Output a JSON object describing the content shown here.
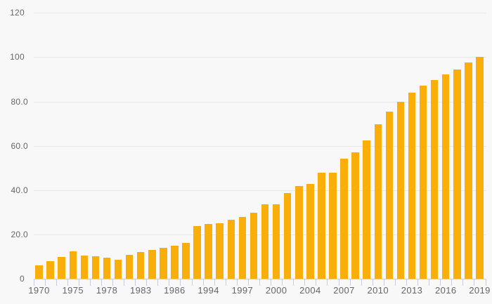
{
  "chart": {
    "title": "",
    "colors": {
      "background": "#f8f8f8",
      "bar": "#FAAE0A",
      "gridline": "#e8e8e8",
      "axis_and_ticks": "#c6cde4",
      "label_text": "#666666"
    }
  },
  "chart_data": {
    "type": "bar",
    "title": "",
    "xlabel": "",
    "ylabel": "",
    "ylim": [
      0,
      120
    ],
    "grid": "horizontal",
    "legend_position": "none",
    "x_tick_marks": "between-bars",
    "categories": [
      "1970",
      "",
      "",
      "1975",
      "",
      "",
      "1978",
      "",
      "",
      "1983",
      "",
      "",
      "1986",
      "",
      "",
      "1994",
      "",
      "",
      "1997",
      "",
      "",
      "2000",
      "",
      "",
      "2004",
      "",
      "",
      "2007",
      "",
      "",
      "2010",
      "",
      "",
      "2013",
      "",
      "",
      "2016",
      "",
      "",
      "2019"
    ],
    "visible_x_labels": [
      "1970",
      "1975",
      "1978",
      "1983",
      "1986",
      "1994",
      "1997",
      "2000",
      "2004",
      "2007",
      "2010",
      "2013",
      "2016",
      "2019"
    ],
    "values": [
      6.2,
      7.9,
      10.0,
      12.4,
      10.5,
      10.1,
      9.7,
      8.5,
      10.8,
      12.2,
      13.0,
      13.9,
      15.1,
      16.2,
      23.7,
      24.8,
      25.2,
      26.7,
      28.0,
      29.8,
      33.5,
      33.5,
      38.7,
      41.9,
      42.7,
      48.0,
      48.0,
      54.1,
      57.0,
      62.5,
      69.7,
      75.3,
      80.0,
      84.0,
      87.2,
      89.8,
      92.2,
      94.5,
      97.7,
      100.0
    ],
    "y_ticks": [
      {
        "value": 0,
        "label": "0"
      },
      {
        "value": 20,
        "label": "20.0"
      },
      {
        "value": 40,
        "label": "40.0"
      },
      {
        "value": 60,
        "label": "60.0"
      },
      {
        "value": 80,
        "label": "80.0"
      },
      {
        "value": 100,
        "label": "100"
      },
      {
        "value": 120,
        "label": "120"
      }
    ]
  }
}
